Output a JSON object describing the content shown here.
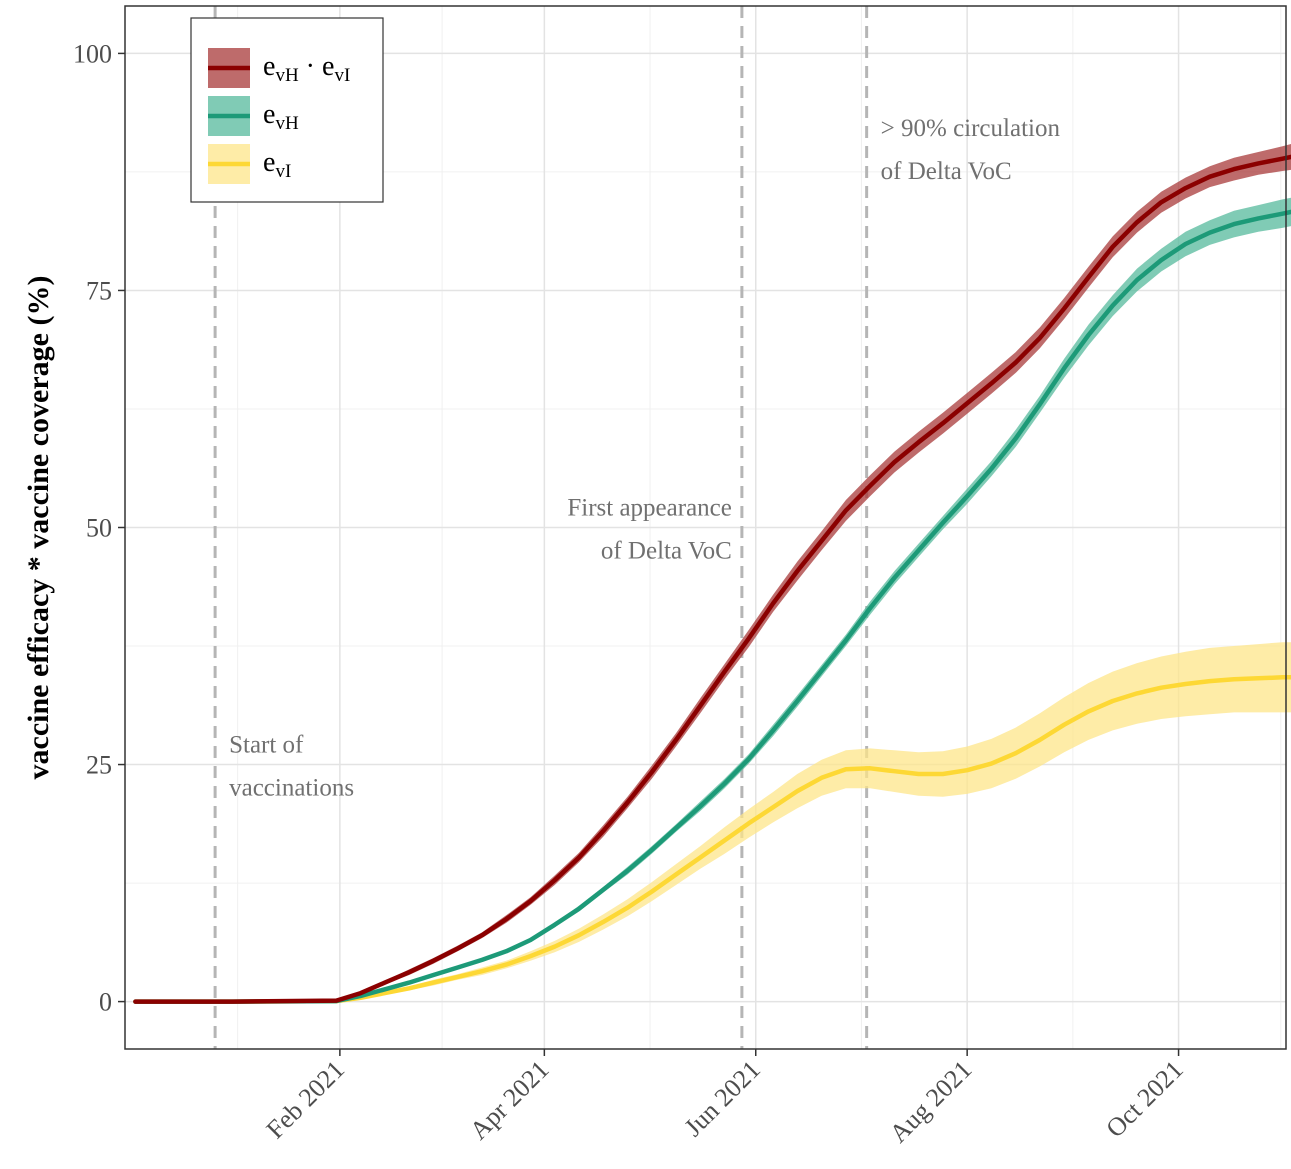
{
  "chart_data": {
    "type": "line",
    "title": "",
    "xlabel": "",
    "ylabel": "vaccine efficacy * vaccine coverage (%)",
    "x_axis": {
      "type": "date",
      "range": [
        "2020-12-01",
        "2021-11-01"
      ],
      "ticks": [
        "2021-02-01",
        "2021-04-01",
        "2021-06-01",
        "2021-08-01",
        "2021-10-01"
      ],
      "tick_labels": [
        "Feb 2021",
        "Apr 2021",
        "Jun 2021",
        "Aug 2021",
        "Oct 2021"
      ]
    },
    "y_axis": {
      "range": [
        -5,
        105
      ],
      "ticks": [
        0,
        25,
        50,
        75,
        100
      ],
      "tick_labels": [
        "0",
        "25",
        "50",
        "75",
        "100"
      ]
    },
    "grid": true,
    "legend": {
      "position": "top-left",
      "entries": [
        {
          "parts": [
            [
              "e",
              ""
            ],
            [
              "vH",
              "sub"
            ],
            [
              " · e",
              ""
            ],
            [
              "vI",
              "sub"
            ]
          ]
        },
        {
          "parts": [
            [
              "e",
              ""
            ],
            [
              "vH",
              "sub"
            ]
          ]
        },
        {
          "parts": [
            [
              "e",
              ""
            ],
            [
              "vI",
              "sub"
            ]
          ]
        }
      ]
    },
    "series": [
      {
        "color": "#8B0000",
        "band_color": "#A83A3A",
        "points": [
          [
            "2020-12-04",
            0,
            0,
            0
          ],
          [
            "2021-01-01",
            0,
            0,
            0
          ],
          [
            "2021-01-31",
            0.1,
            0.1,
            0.1
          ],
          [
            "2021-02-07",
            0.9,
            0.8,
            1.0
          ],
          [
            "2021-02-14",
            2.0,
            1.8,
            2.2
          ],
          [
            "2021-02-21",
            3.1,
            2.8,
            3.4
          ],
          [
            "2021-02-28",
            4.3,
            4.0,
            4.6
          ],
          [
            "2021-03-07",
            5.6,
            5.3,
            5.9
          ],
          [
            "2021-03-14",
            7.0,
            6.7,
            7.3
          ],
          [
            "2021-03-21",
            8.7,
            8.3,
            9.1
          ],
          [
            "2021-03-28",
            10.6,
            10.2,
            11.0
          ],
          [
            "2021-04-04",
            12.8,
            12.3,
            13.3
          ],
          [
            "2021-04-11",
            15.2,
            14.7,
            15.7
          ],
          [
            "2021-04-18",
            18.0,
            17.4,
            18.6
          ],
          [
            "2021-04-25",
            21.0,
            20.4,
            21.6
          ],
          [
            "2021-05-02",
            24.2,
            23.5,
            24.9
          ],
          [
            "2021-05-09",
            27.6,
            26.9,
            28.3
          ],
          [
            "2021-05-16",
            31.2,
            30.4,
            32.0
          ],
          [
            "2021-05-23",
            34.8,
            34.0,
            35.6
          ],
          [
            "2021-05-30",
            38.3,
            37.4,
            39.2
          ],
          [
            "2021-06-06",
            42.0,
            41.1,
            42.9
          ],
          [
            "2021-06-13",
            45.4,
            44.4,
            46.4
          ],
          [
            "2021-06-20",
            48.6,
            47.6,
            49.6
          ],
          [
            "2021-06-27",
            51.8,
            50.7,
            52.9
          ],
          [
            "2021-07-04",
            54.4,
            53.3,
            55.5
          ],
          [
            "2021-07-11",
            56.9,
            55.8,
            58.0
          ],
          [
            "2021-07-18",
            59.0,
            57.9,
            60.1
          ],
          [
            "2021-07-25",
            61.0,
            59.9,
            62.1
          ],
          [
            "2021-08-01",
            63.1,
            62.0,
            64.2
          ],
          [
            "2021-08-08",
            65.2,
            64.1,
            66.3
          ],
          [
            "2021-08-15",
            67.4,
            66.3,
            68.5
          ],
          [
            "2021-08-22",
            70.0,
            68.9,
            71.1
          ],
          [
            "2021-08-29",
            73.1,
            72.0,
            74.2
          ],
          [
            "2021-09-05",
            76.4,
            75.3,
            77.5
          ],
          [
            "2021-09-12",
            79.6,
            78.5,
            80.7
          ],
          [
            "2021-09-19",
            82.2,
            81.1,
            83.3
          ],
          [
            "2021-09-26",
            84.3,
            83.2,
            85.4
          ],
          [
            "2021-10-03",
            85.8,
            84.7,
            86.9
          ],
          [
            "2021-10-10",
            87.0,
            85.9,
            88.1
          ],
          [
            "2021-10-17",
            87.8,
            86.6,
            89.0
          ],
          [
            "2021-10-24",
            88.4,
            87.2,
            89.6
          ],
          [
            "2021-10-31",
            88.9,
            87.6,
            90.2
          ],
          [
            "2021-11-04",
            89.2,
            87.8,
            90.6
          ]
        ]
      },
      {
        "color": "#1D9A78",
        "band_color": "#56BA9C",
        "points": [
          [
            "2020-12-04",
            0,
            0,
            0
          ],
          [
            "2021-01-01",
            0,
            0,
            0
          ],
          [
            "2021-01-31",
            0.05,
            0.05,
            0.05
          ],
          [
            "2021-02-07",
            0.6,
            0.5,
            0.7
          ],
          [
            "2021-02-14",
            1.3,
            1.2,
            1.4
          ],
          [
            "2021-02-21",
            2.0,
            1.9,
            2.1
          ],
          [
            "2021-02-28",
            2.8,
            2.7,
            2.9
          ],
          [
            "2021-03-07",
            3.6,
            3.5,
            3.7
          ],
          [
            "2021-03-14",
            4.4,
            4.3,
            4.5
          ],
          [
            "2021-03-21",
            5.3,
            5.2,
            5.4
          ],
          [
            "2021-03-28",
            6.5,
            6.3,
            6.7
          ],
          [
            "2021-04-04",
            8.1,
            7.9,
            8.3
          ],
          [
            "2021-04-11",
            9.8,
            9.5,
            10.1
          ],
          [
            "2021-04-18",
            11.8,
            11.5,
            12.1
          ],
          [
            "2021-04-25",
            13.8,
            13.4,
            14.2
          ],
          [
            "2021-05-02",
            16.0,
            15.6,
            16.4
          ],
          [
            "2021-05-09",
            18.3,
            17.9,
            18.7
          ],
          [
            "2021-05-16",
            20.6,
            20.1,
            21.1
          ],
          [
            "2021-05-23",
            23.0,
            22.5,
            23.5
          ],
          [
            "2021-05-30",
            25.6,
            25.1,
            26.1
          ],
          [
            "2021-06-06",
            28.6,
            28.0,
            29.2
          ],
          [
            "2021-06-13",
            31.7,
            31.1,
            32.3
          ],
          [
            "2021-06-20",
            34.9,
            34.3,
            35.5
          ],
          [
            "2021-06-27",
            38.1,
            37.5,
            38.7
          ],
          [
            "2021-07-04",
            41.5,
            40.8,
            42.2
          ],
          [
            "2021-07-11",
            44.7,
            44.0,
            45.4
          ],
          [
            "2021-07-18",
            47.6,
            46.9,
            48.3
          ],
          [
            "2021-07-25",
            50.5,
            49.8,
            51.2
          ],
          [
            "2021-08-01",
            53.3,
            52.5,
            54.1
          ],
          [
            "2021-08-08",
            56.2,
            55.4,
            57.0
          ],
          [
            "2021-08-15",
            59.4,
            58.5,
            60.3
          ],
          [
            "2021-08-22",
            63.0,
            62.1,
            63.9
          ],
          [
            "2021-08-29",
            66.8,
            65.8,
            67.8
          ],
          [
            "2021-09-05",
            70.3,
            69.2,
            71.4
          ],
          [
            "2021-09-12",
            73.4,
            72.3,
            74.5
          ],
          [
            "2021-09-19",
            76.1,
            74.9,
            77.3
          ],
          [
            "2021-09-26",
            78.2,
            77.0,
            79.4
          ],
          [
            "2021-10-03",
            79.9,
            78.6,
            81.2
          ],
          [
            "2021-10-10",
            81.1,
            79.8,
            82.4
          ],
          [
            "2021-10-17",
            82.0,
            80.6,
            83.4
          ],
          [
            "2021-10-24",
            82.6,
            81.2,
            84.0
          ],
          [
            "2021-10-31",
            83.1,
            81.6,
            84.6
          ],
          [
            "2021-11-04",
            83.4,
            81.9,
            84.9
          ]
        ]
      },
      {
        "color": "#FDD835",
        "band_color": "#FDE68A",
        "points": [
          [
            "2020-12-04",
            0,
            0,
            0
          ],
          [
            "2021-01-01",
            0,
            0,
            0
          ],
          [
            "2021-01-31",
            0.05,
            0.05,
            0.05
          ],
          [
            "2021-02-07",
            0.4,
            0.3,
            0.5
          ],
          [
            "2021-02-14",
            0.9,
            0.7,
            1.1
          ],
          [
            "2021-02-21",
            1.4,
            1.2,
            1.6
          ],
          [
            "2021-02-28",
            2.0,
            1.7,
            2.3
          ],
          [
            "2021-03-07",
            2.6,
            2.3,
            2.9
          ],
          [
            "2021-03-14",
            3.2,
            2.8,
            3.6
          ],
          [
            "2021-03-21",
            3.9,
            3.5,
            4.3
          ],
          [
            "2021-03-28",
            4.8,
            4.3,
            5.3
          ],
          [
            "2021-04-04",
            5.8,
            5.2,
            6.4
          ],
          [
            "2021-04-11",
            7.0,
            6.3,
            7.7
          ],
          [
            "2021-04-18",
            8.4,
            7.6,
            9.2
          ],
          [
            "2021-04-25",
            9.9,
            9.0,
            10.8
          ],
          [
            "2021-05-02",
            11.6,
            10.6,
            12.6
          ],
          [
            "2021-05-09",
            13.4,
            12.3,
            14.5
          ],
          [
            "2021-05-16",
            15.2,
            14.0,
            16.4
          ],
          [
            "2021-05-23",
            17.0,
            15.6,
            18.4
          ],
          [
            "2021-05-30",
            18.8,
            17.3,
            20.3
          ],
          [
            "2021-06-06",
            20.5,
            18.9,
            22.1
          ],
          [
            "2021-06-13",
            22.2,
            20.4,
            24.0
          ],
          [
            "2021-06-20",
            23.6,
            21.7,
            25.5
          ],
          [
            "2021-06-27",
            24.5,
            22.5,
            26.5
          ],
          [
            "2021-07-04",
            24.6,
            22.5,
            26.7
          ],
          [
            "2021-07-11",
            24.3,
            22.1,
            26.5
          ],
          [
            "2021-07-18",
            24.0,
            21.7,
            26.3
          ],
          [
            "2021-07-25",
            24.0,
            21.6,
            26.4
          ],
          [
            "2021-08-01",
            24.4,
            21.9,
            26.9
          ],
          [
            "2021-08-08",
            25.1,
            22.5,
            27.7
          ],
          [
            "2021-08-15",
            26.2,
            23.5,
            28.9
          ],
          [
            "2021-08-22",
            27.6,
            24.8,
            30.4
          ],
          [
            "2021-08-29",
            29.2,
            26.3,
            32.1
          ],
          [
            "2021-09-05",
            30.6,
            27.6,
            33.6
          ],
          [
            "2021-09-12",
            31.7,
            28.6,
            34.8
          ],
          [
            "2021-09-19",
            32.5,
            29.3,
            35.7
          ],
          [
            "2021-09-26",
            33.1,
            29.8,
            36.4
          ],
          [
            "2021-10-03",
            33.5,
            30.1,
            36.9
          ],
          [
            "2021-10-10",
            33.8,
            30.3,
            37.3
          ],
          [
            "2021-10-17",
            34.0,
            30.5,
            37.5
          ],
          [
            "2021-10-24",
            34.1,
            30.5,
            37.7
          ],
          [
            "2021-10-31",
            34.2,
            30.5,
            37.9
          ],
          [
            "2021-11-04",
            34.2,
            30.5,
            37.9
          ]
        ]
      }
    ],
    "vlines": [
      "2020-12-27",
      "2021-05-28",
      "2021-07-03"
    ],
    "annotations": [
      {
        "lines": [
          "Start of",
          "vaccinations"
        ],
        "x": "2020-12-27",
        "y": 25,
        "align": "left"
      },
      {
        "lines": [
          "First appearance",
          "of Delta VoC"
        ],
        "x": "2021-05-28",
        "y": 50,
        "align": "right"
      },
      {
        "lines": [
          "> 90% circulation",
          "of Delta VoC"
        ],
        "x": "2021-07-03",
        "y": 90,
        "align": "left"
      }
    ]
  }
}
